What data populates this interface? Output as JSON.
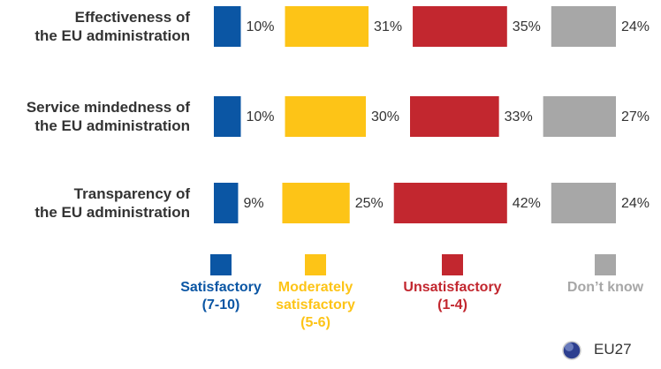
{
  "chart_data": {
    "type": "bar",
    "categories": [
      "Effectiveness of\nthe EU administration",
      "Service mindedness of\nthe EU administration",
      "Transparency of\nthe EU administration"
    ],
    "series": [
      {
        "name": "Satisfactory\n(7-10)",
        "color": "#0b56a4",
        "values": [
          10,
          10,
          9
        ],
        "value_labels": [
          "10%",
          "10%",
          "9%"
        ]
      },
      {
        "name": "Moderately\nsatisfactory\n(5-6)",
        "color": "#fdc417",
        "values": [
          31,
          30,
          25
        ],
        "value_labels": [
          "31%",
          "30%",
          "25%"
        ]
      },
      {
        "name": "Unsatisfactory\n(1-4)",
        "color": "#c2272f",
        "values": [
          35,
          33,
          42
        ],
        "value_labels": [
          "35%",
          "33%",
          "42%"
        ]
      },
      {
        "name": "Don’t know",
        "color": "#a7a7a7",
        "values": [
          24,
          27,
          24
        ],
        "value_labels": [
          "24%",
          "27%",
          "24%"
        ]
      }
    ],
    "badge": "EU27"
  }
}
